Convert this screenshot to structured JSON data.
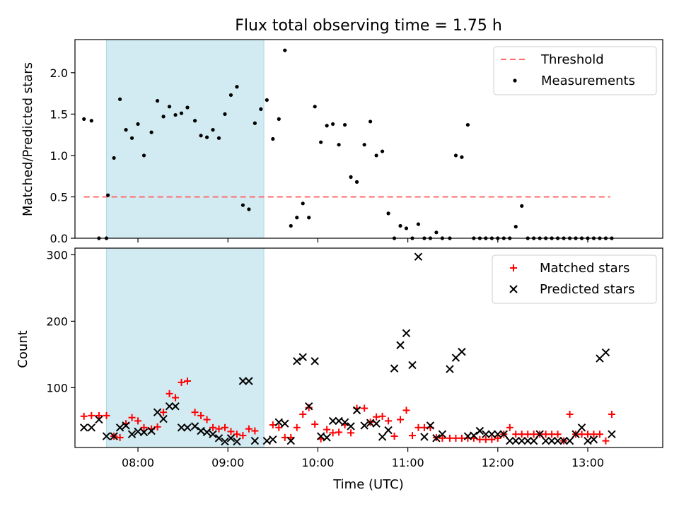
{
  "chart_data": {
    "title": "Flux total observing time = 1.75 h",
    "xlabel": "Time (UTC)",
    "x_ticks": [
      "08:00",
      "09:00",
      "10:00",
      "11:00",
      "12:00",
      "13:00"
    ],
    "xlim": [
      "07:18",
      "13:50"
    ],
    "shaded_region": {
      "start": "07:39",
      "end": "09:24",
      "color": "#add8e6"
    },
    "panels": [
      {
        "type": "scatter",
        "ylabel": "Matched/Predicted stars",
        "ylim": [
          0,
          2.4
        ],
        "y_ticks": [
          "0.0",
          "0.5",
          "1.0",
          "1.5",
          "2.0"
        ],
        "legend_position": "upper right",
        "series": [
          {
            "name": "Threshold",
            "kind": "dashed-line",
            "color": "#ff6b6b",
            "x": [
              "07:24",
              "13:15"
            ],
            "y": [
              0.5,
              0.5
            ]
          },
          {
            "name": "Measurements",
            "kind": "points",
            "color": "#000000",
            "x": [
              "07:24",
              "07:29",
              "07:34",
              "07:39",
              "07:40",
              "07:44",
              "07:48",
              "07:52",
              "07:56",
              "08:00",
              "08:04",
              "08:09",
              "08:13",
              "08:17",
              "08:21",
              "08:25",
              "08:29",
              "08:33",
              "08:38",
              "08:42",
              "08:46",
              "08:50",
              "08:54",
              "08:58",
              "09:02",
              "09:06",
              "09:10",
              "09:14",
              "09:18",
              "09:22",
              "09:26",
              "09:30",
              "09:34",
              "09:38",
              "09:42",
              "09:46",
              "09:50",
              "09:54",
              "09:58",
              "10:02",
              "10:06",
              "10:10",
              "10:14",
              "10:18",
              "10:22",
              "10:26",
              "10:31",
              "10:35",
              "10:39",
              "10:43",
              "10:47",
              "10:51",
              "10:55",
              "10:59",
              "11:03",
              "11:07",
              "11:11",
              "11:15",
              "11:19",
              "11:23",
              "11:28",
              "11:32",
              "11:36",
              "11:40",
              "11:44",
              "11:48",
              "11:52",
              "11:56",
              "12:00",
              "12:04",
              "12:08",
              "12:12",
              "12:16",
              "12:20",
              "12:24",
              "12:28",
              "12:32",
              "12:36",
              "12:40",
              "12:44",
              "12:48",
              "12:52",
              "12:56",
              "13:00",
              "13:04",
              "13:08",
              "13:12",
              "13:16"
            ],
            "y": [
              1.44,
              1.42,
              0.0,
              0.0,
              0.52,
              0.97,
              1.68,
              1.31,
              1.21,
              1.38,
              1.0,
              1.28,
              1.66,
              1.47,
              1.59,
              1.49,
              1.51,
              1.58,
              1.42,
              1.24,
              1.22,
              1.31,
              1.21,
              1.5,
              1.73,
              1.83,
              0.4,
              0.35,
              1.39,
              1.56,
              1.67,
              1.2,
              1.44,
              2.27,
              0.15,
              0.25,
              0.42,
              0.25,
              1.59,
              1.16,
              1.36,
              1.38,
              1.13,
              1.37,
              0.74,
              0.68,
              1.13,
              1.41,
              1.0,
              1.05,
              0.3,
              0.0,
              0.15,
              0.12,
              0.0,
              0.17,
              0.0,
              0.0,
              0.07,
              0.0,
              0.0,
              1.0,
              0.98,
              1.37,
              0.0,
              0.0,
              0.0,
              0.0,
              0.0,
              0.0,
              0.0,
              0.14,
              0.39,
              0.0,
              0.0,
              0.0,
              0.0,
              0.0,
              0.0,
              0.0,
              0.0,
              0.0,
              0.0,
              0.0,
              0.0,
              0.0,
              0.0,
              0.0
            ]
          }
        ]
      },
      {
        "type": "scatter",
        "ylabel": "Count",
        "ylim": [
          10,
          310
        ],
        "y_ticks": [
          "100",
          "200",
          "300"
        ],
        "legend_position": "upper right",
        "series": [
          {
            "name": "Matched stars",
            "marker": "+",
            "color": "#ff0000",
            "x": [
              "07:24",
              "07:29",
              "07:34",
              "07:39",
              "07:44",
              "07:48",
              "07:52",
              "07:56",
              "08:00",
              "08:04",
              "08:09",
              "08:13",
              "08:17",
              "08:21",
              "08:25",
              "08:29",
              "08:33",
              "08:38",
              "08:42",
              "08:46",
              "08:50",
              "08:54",
              "08:58",
              "09:02",
              "09:06",
              "09:10",
              "09:14",
              "09:18",
              "09:30",
              "09:34",
              "09:38",
              "09:42",
              "09:46",
              "09:50",
              "09:54",
              "09:58",
              "10:02",
              "10:06",
              "10:10",
              "10:14",
              "10:18",
              "10:22",
              "10:26",
              "10:31",
              "10:35",
              "10:39",
              "10:43",
              "10:47",
              "10:51",
              "10:55",
              "10:59",
              "11:03",
              "11:07",
              "11:11",
              "11:15",
              "11:19",
              "11:23",
              "11:28",
              "11:32",
              "11:36",
              "11:40",
              "11:44",
              "11:48",
              "11:52",
              "11:56",
              "12:00",
              "12:04",
              "12:08",
              "12:12",
              "12:16",
              "12:20",
              "12:24",
              "12:28",
              "12:32",
              "12:36",
              "12:40",
              "12:44",
              "12:48",
              "12:52",
              "12:56",
              "13:00",
              "13:04",
              "13:08",
              "13:12",
              "13:16"
            ],
            "y": [
              57,
              58,
              58,
              58,
              27,
              25,
              46,
              55,
              50,
              40,
              38,
              41,
              63,
              91,
              85,
              108,
              110,
              63,
              58,
              52,
              40,
              38,
              40,
              34,
              30,
              28,
              38,
              35,
              44,
              40,
              25,
              25,
              40,
              60,
              70,
              45,
              23,
              37,
              32,
              33,
              44,
              32,
              69,
              69,
              48,
              56,
              57,
              50,
              27,
              52,
              66,
              28,
              40,
              40,
              40,
              25,
              24,
              24,
              24,
              24,
              24,
              24,
              22,
              22,
              22,
              24,
              30,
              40,
              30,
              30,
              30,
              30,
              30,
              30,
              30,
              30,
              20,
              60,
              30,
              30,
              30,
              30,
              30,
              20,
              60
            ]
          },
          {
            "name": "Predicted stars",
            "marker": "x",
            "color": "#000000",
            "x": [
              "07:24",
              "07:29",
              "07:34",
              "07:39",
              "07:44",
              "07:48",
              "07:52",
              "07:56",
              "08:00",
              "08:04",
              "08:09",
              "08:13",
              "08:17",
              "08:21",
              "08:25",
              "08:29",
              "08:33",
              "08:38",
              "08:42",
              "08:46",
              "08:50",
              "08:54",
              "08:58",
              "09:02",
              "09:06",
              "09:10",
              "09:14",
              "09:18",
              "09:26",
              "09:30",
              "09:34",
              "09:38",
              "09:42",
              "09:46",
              "09:50",
              "09:54",
              "09:58",
              "10:02",
              "10:06",
              "10:10",
              "10:14",
              "10:18",
              "10:22",
              "10:26",
              "10:31",
              "10:35",
              "10:39",
              "10:43",
              "10:47",
              "10:51",
              "10:55",
              "10:59",
              "11:03",
              "11:07",
              "11:11",
              "11:15",
              "11:19",
              "11:23",
              "11:28",
              "11:32",
              "11:36",
              "11:40",
              "11:44",
              "11:48",
              "11:52",
              "11:56",
              "12:00",
              "12:04",
              "12:08",
              "12:12",
              "12:16",
              "12:20",
              "12:24",
              "12:28",
              "12:32",
              "12:36",
              "12:40",
              "12:44",
              "12:48",
              "12:52",
              "12:56",
              "13:00",
              "13:04",
              "13:08",
              "13:12",
              "13:16"
            ],
            "y": [
              40,
              40,
              52,
              27,
              27,
              40,
              43,
              30,
              34,
              33,
              35,
              63,
              53,
              72,
              72,
              40,
              40,
              42,
              35,
              33,
              30,
              24,
              19,
              24,
              19,
              110,
              110,
              20,
              20,
              22,
              48,
              46,
              20,
              140,
              146,
              72,
              140,
              27,
              25,
              50,
              50,
              48,
              42,
              66,
              43,
              47,
              46,
              26,
              36,
              129,
              164,
              182,
              134,
              297,
              26,
              43,
              24,
              30,
              128,
              145,
              154,
              27,
              28,
              35,
              30,
              30,
              30,
              30,
              20,
              20,
              20,
              20,
              20,
              30,
              20,
              20,
              20,
              20,
              20,
              30,
              40,
              20,
              22,
              144,
              153,
              30
            ]
          }
        ]
      }
    ]
  }
}
